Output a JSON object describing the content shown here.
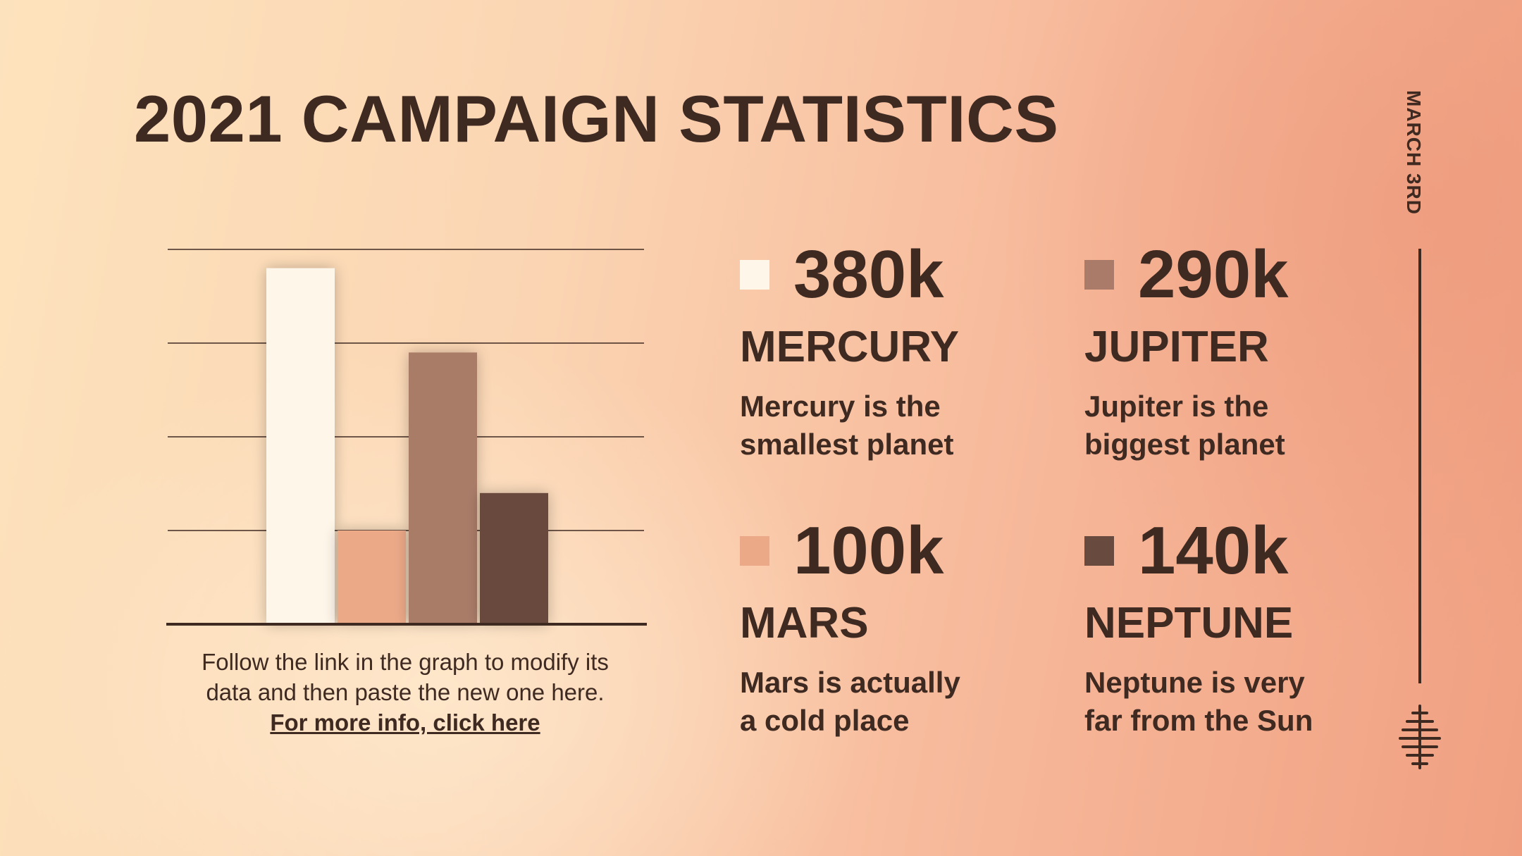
{
  "title": "2021 CAMPAIGN STATISTICS",
  "date": "MARCH 3RD",
  "caption": {
    "line1": "Follow the link in the graph to modify its",
    "line2": "data and then paste the new one here.",
    "link": "For more info, click here"
  },
  "colors": {
    "mercury": "#fff6ea",
    "mars": "#eba988",
    "jupiter": "#a97b68",
    "neptune": "#694a3e",
    "text": "#3f2a22"
  },
  "stats": [
    {
      "value": "380k",
      "name": "MERCURY",
      "desc1": "Mercury is the",
      "desc2": "smallest planet"
    },
    {
      "value": "290k",
      "name": "JUPITER",
      "desc1": "Jupiter is the",
      "desc2": "biggest planet"
    },
    {
      "value": "100k",
      "name": "MARS",
      "desc1": "Mars is actually",
      "desc2": "a cold place"
    },
    {
      "value": "140k",
      "name": "NEPTUNE",
      "desc1": "Neptune is very",
      "desc2": "far from the Sun"
    }
  ],
  "chart_data": {
    "type": "bar",
    "categories": [
      "Mercury",
      "Mars",
      "Jupiter",
      "Neptune"
    ],
    "values": [
      380,
      100,
      290,
      140
    ],
    "ylim": [
      0,
      400
    ],
    "grid": true,
    "colors": [
      "#fff6ea",
      "#eba988",
      "#a97b68",
      "#694a3e"
    ]
  }
}
